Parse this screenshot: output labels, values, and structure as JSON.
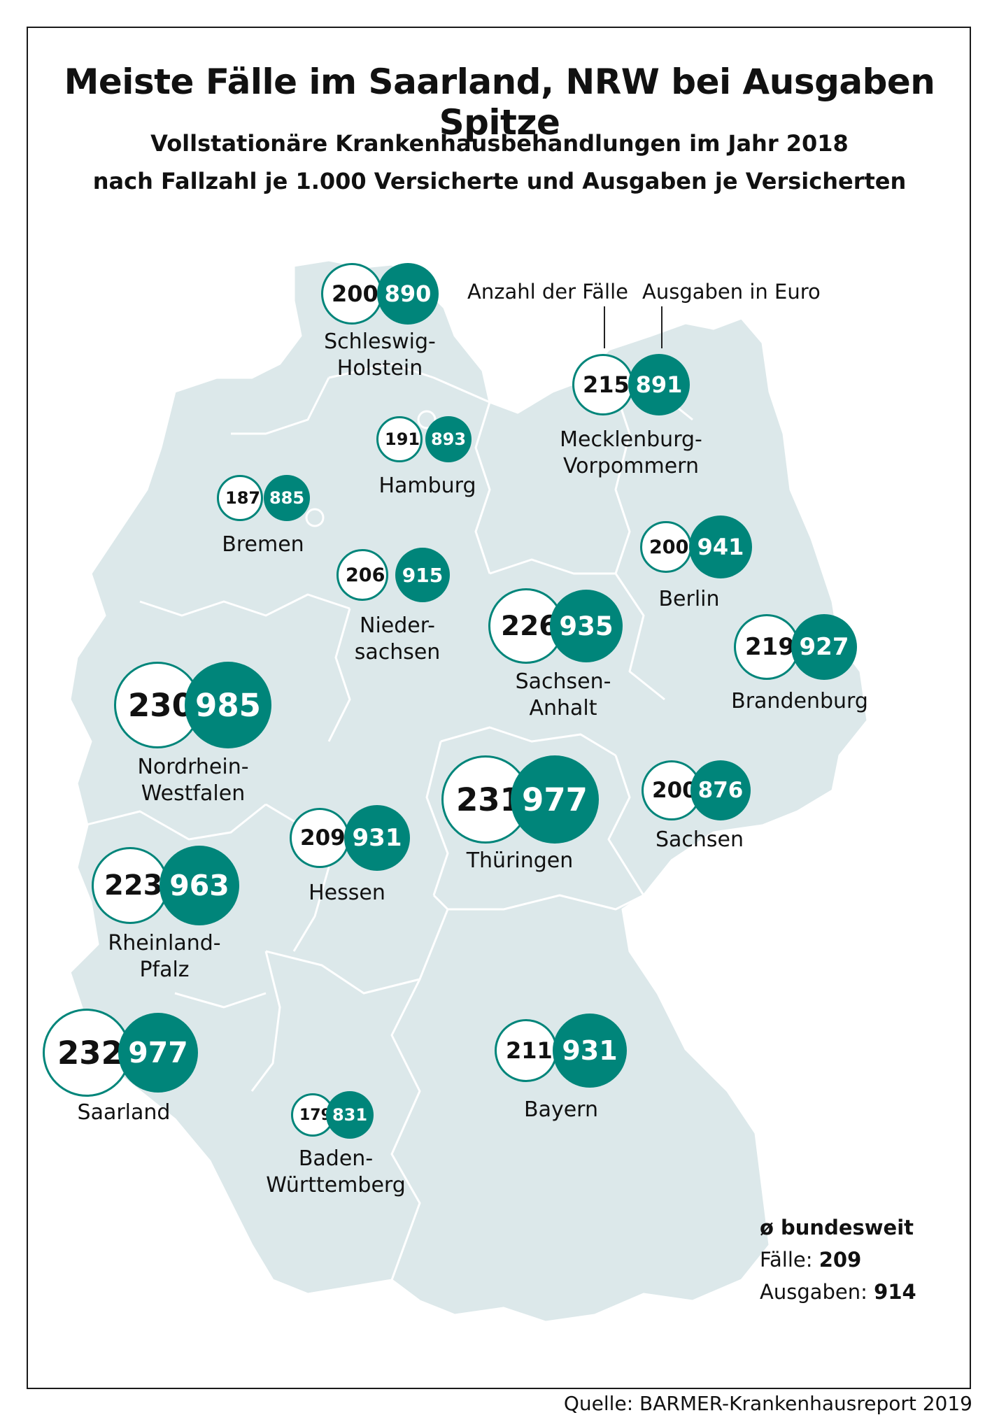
{
  "title": "Meiste Fälle im Saarland, NRW bei Ausgaben Spitze",
  "subtitle_line1": "Vollstationäre Krankenhausbehandlungen im Jahr 2018",
  "subtitle_line2": "nach Fallzahl je 1.000 Versicherte und Ausgaben je Versicherten",
  "legend": {
    "cases_label": "Anzahl der Fälle",
    "cost_label": "Ausgaben in Euro"
  },
  "colors": {
    "land": "#dce8ea",
    "border": "#ffffff",
    "accent": "#00857a"
  },
  "states": [
    {
      "name_lines": [
        "Schleswig-",
        "Holstein"
      ],
      "cases": "200",
      "cost": "890"
    },
    {
      "name_lines": [
        "Mecklenburg-",
        "Vorpommern"
      ],
      "cases": "215",
      "cost": "891"
    },
    {
      "name_lines": [
        "Hamburg"
      ],
      "cases": "191",
      "cost": "893"
    },
    {
      "name_lines": [
        "Bremen"
      ],
      "cases": "187",
      "cost": "885"
    },
    {
      "name_lines": [
        "Nieder-",
        "sachsen"
      ],
      "cases": "206",
      "cost": "915"
    },
    {
      "name_lines": [
        "Berlin"
      ],
      "cases": "200",
      "cost": "941"
    },
    {
      "name_lines": [
        "Sachsen-",
        "Anhalt"
      ],
      "cases": "226",
      "cost": "935"
    },
    {
      "name_lines": [
        "Brandenburg"
      ],
      "cases": "219",
      "cost": "927"
    },
    {
      "name_lines": [
        "Nordrhein-",
        "Westfalen"
      ],
      "cases": "230",
      "cost": "985"
    },
    {
      "name_lines": [
        "Thüringen"
      ],
      "cases": "231",
      "cost": "977"
    },
    {
      "name_lines": [
        "Sachsen"
      ],
      "cases": "200",
      "cost": "876"
    },
    {
      "name_lines": [
        "Hessen"
      ],
      "cases": "209",
      "cost": "931"
    },
    {
      "name_lines": [
        "Rheinland-",
        "Pfalz"
      ],
      "cases": "223",
      "cost": "963"
    },
    {
      "name_lines": [
        "Saarland"
      ],
      "cases": "232",
      "cost": "977"
    },
    {
      "name_lines": [
        "Bayern"
      ],
      "cases": "211",
      "cost": "931"
    },
    {
      "name_lines": [
        "Baden-",
        "Württemberg"
      ],
      "cases": "179",
      "cost": "831"
    }
  ],
  "national_average": {
    "heading": "ø bundesweit",
    "cases_label": "Fälle:",
    "cases_value": "209",
    "cost_label": "Ausgaben:",
    "cost_value": "914"
  },
  "source": "Quelle: BARMER-Krankenhausreport 2019"
}
